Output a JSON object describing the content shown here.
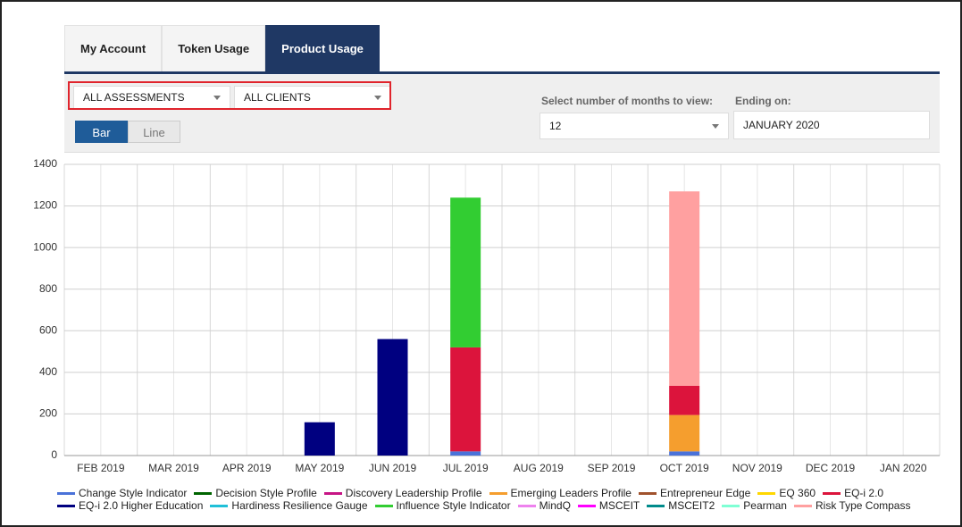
{
  "tabs": [
    "My Account",
    "Token Usage",
    "Product Usage"
  ],
  "active_tab": 2,
  "filters": {
    "assessment": "ALL ASSESSMENTS",
    "client": "ALL CLIENTS",
    "months_label": "Select number of months to view:",
    "months": "12",
    "ending_label": "Ending on:",
    "ending": "JANUARY 2020"
  },
  "view_toggle": [
    "Bar",
    "Line"
  ],
  "active_view": 0,
  "chart_data": {
    "type": "bar",
    "stacked": true,
    "grid": true,
    "categories": [
      "FEB 2019",
      "MAR 2019",
      "APR 2019",
      "MAY 2019",
      "JUN 2019",
      "JUL 2019",
      "AUG 2019",
      "SEP 2019",
      "OCT 2019",
      "NOV 2019",
      "DEC 2019",
      "JAN 2020"
    ],
    "ylim": [
      0,
      1400
    ],
    "yticks": [
      0,
      200,
      400,
      600,
      800,
      1000,
      1200,
      1400
    ],
    "series": [
      {
        "name": "Change Style Indicator",
        "color": "#4a72d9",
        "values": [
          0,
          0,
          0,
          0,
          0,
          20,
          0,
          0,
          20,
          0,
          0,
          0
        ]
      },
      {
        "name": "Decision Style Profile",
        "color": "#006400",
        "values": [
          0,
          0,
          0,
          0,
          0,
          0,
          0,
          0,
          0,
          0,
          0,
          0
        ]
      },
      {
        "name": "Discovery Leadership Profile",
        "color": "#c71585",
        "values": [
          0,
          0,
          0,
          0,
          0,
          0,
          0,
          0,
          0,
          0,
          0,
          0
        ]
      },
      {
        "name": "Emerging Leaders Profile",
        "color": "#f59e2e",
        "values": [
          0,
          0,
          0,
          0,
          0,
          0,
          0,
          0,
          175,
          0,
          0,
          0
        ]
      },
      {
        "name": "Entrepreneur Edge",
        "color": "#a0522d",
        "values": [
          0,
          0,
          0,
          0,
          0,
          0,
          0,
          0,
          0,
          0,
          0,
          0
        ]
      },
      {
        "name": "EQ 360",
        "color": "#ffd700",
        "values": [
          0,
          0,
          0,
          0,
          0,
          0,
          0,
          0,
          0,
          0,
          0,
          0
        ]
      },
      {
        "name": "EQ-i 2.0",
        "color": "#dc143c",
        "values": [
          0,
          0,
          0,
          0,
          0,
          500,
          0,
          0,
          140,
          0,
          0,
          0
        ]
      },
      {
        "name": "EQ-i 2.0 Higher Education",
        "color": "#000080",
        "values": [
          0,
          0,
          0,
          160,
          560,
          0,
          0,
          0,
          0,
          0,
          0,
          0
        ]
      },
      {
        "name": "Hardiness Resilience Gauge",
        "color": "#20c0d8",
        "values": [
          0,
          0,
          0,
          0,
          0,
          0,
          0,
          0,
          0,
          0,
          0,
          0
        ]
      },
      {
        "name": "Influence Style Indicator",
        "color": "#32cd32",
        "values": [
          0,
          0,
          0,
          0,
          0,
          720,
          0,
          0,
          0,
          0,
          0,
          0
        ]
      },
      {
        "name": "MindQ",
        "color": "#ee82ee",
        "values": [
          0,
          0,
          0,
          0,
          0,
          0,
          0,
          0,
          0,
          0,
          0,
          0
        ]
      },
      {
        "name": "MSCEIT",
        "color": "#ff00ff",
        "values": [
          0,
          0,
          0,
          0,
          0,
          0,
          0,
          0,
          0,
          0,
          0,
          0
        ]
      },
      {
        "name": "MSCEIT2",
        "color": "#008b8b",
        "values": [
          0,
          0,
          0,
          0,
          0,
          0,
          0,
          0,
          0,
          0,
          0,
          0
        ]
      },
      {
        "name": "Pearman",
        "color": "#7fffd4",
        "values": [
          0,
          0,
          0,
          0,
          0,
          0,
          0,
          0,
          0,
          0,
          0,
          0
        ]
      },
      {
        "name": "Risk Type Compass",
        "color": "#ffa0a0",
        "values": [
          0,
          0,
          0,
          0,
          0,
          0,
          0,
          0,
          935,
          0,
          0,
          0
        ]
      }
    ]
  }
}
